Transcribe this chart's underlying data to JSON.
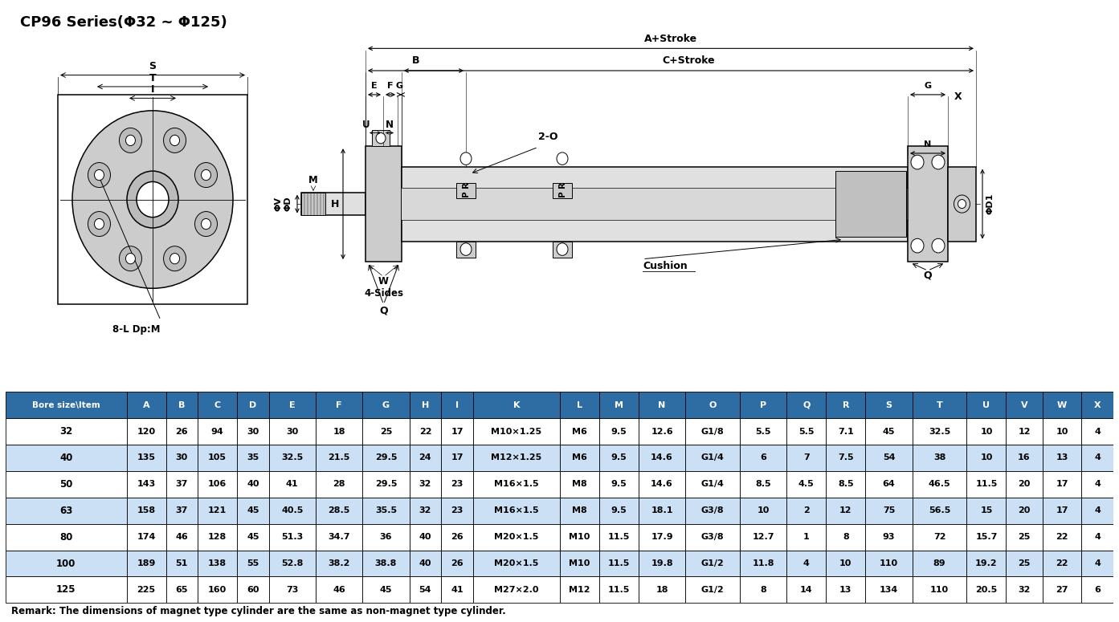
{
  "title": "CP96 Series(Φ32 ~ Φ125)",
  "remark": "Remark: The dimensions of magnet type cylinder are the same as non-magnet type cylinder.",
  "header": [
    "Bore size\\Item",
    "A",
    "B",
    "C",
    "D",
    "E",
    "F",
    "G",
    "H",
    "I",
    "K",
    "L",
    "M",
    "N",
    "O",
    "P",
    "Q",
    "R",
    "S",
    "T",
    "U",
    "V",
    "W",
    "X"
  ],
  "rows": [
    [
      "32",
      "120",
      "26",
      "94",
      "30",
      "30",
      "18",
      "25",
      "22",
      "17",
      "M10×1.25",
      "M6",
      "9.5",
      "12.6",
      "G1/8",
      "5.5",
      "5.5",
      "7.1",
      "45",
      "32.5",
      "10",
      "12",
      "10",
      "4"
    ],
    [
      "40",
      "135",
      "30",
      "105",
      "35",
      "32.5",
      "21.5",
      "29.5",
      "24",
      "17",
      "M12×1.25",
      "M6",
      "9.5",
      "14.6",
      "G1/4",
      "6",
      "7",
      "7.5",
      "54",
      "38",
      "10",
      "16",
      "13",
      "4"
    ],
    [
      "50",
      "143",
      "37",
      "106",
      "40",
      "41",
      "28",
      "29.5",
      "32",
      "23",
      "M16×1.5",
      "M8",
      "9.5",
      "14.6",
      "G1/4",
      "8.5",
      "4.5",
      "8.5",
      "64",
      "46.5",
      "11.5",
      "20",
      "17",
      "4"
    ],
    [
      "63",
      "158",
      "37",
      "121",
      "45",
      "40.5",
      "28.5",
      "35.5",
      "32",
      "23",
      "M16×1.5",
      "M8",
      "9.5",
      "18.1",
      "G3/8",
      "10",
      "2",
      "12",
      "75",
      "56.5",
      "15",
      "20",
      "17",
      "4"
    ],
    [
      "80",
      "174",
      "46",
      "128",
      "45",
      "51.3",
      "34.7",
      "36",
      "40",
      "26",
      "M20×1.5",
      "M10",
      "11.5",
      "17.9",
      "G3/8",
      "12.7",
      "1",
      "8",
      "93",
      "72",
      "15.7",
      "25",
      "22",
      "4"
    ],
    [
      "100",
      "189",
      "51",
      "138",
      "55",
      "52.8",
      "38.2",
      "38.8",
      "40",
      "26",
      "M20×1.5",
      "M10",
      "11.5",
      "19.8",
      "G1/2",
      "11.8",
      "4",
      "10",
      "110",
      "89",
      "19.2",
      "25",
      "22",
      "4"
    ],
    [
      "125",
      "225",
      "65",
      "160",
      "60",
      "73",
      "46",
      "45",
      "54",
      "41",
      "M27×2.0",
      "M12",
      "11.5",
      "18",
      "G1/2",
      "8",
      "14",
      "13",
      "134",
      "110",
      "20.5",
      "32",
      "27",
      "6"
    ]
  ],
  "header_bg": "#2e6da4",
  "header_fg": "#ffffff",
  "row_bg_even": "#ffffff",
  "row_bg_odd": "#cce0f5",
  "col_widths": [
    1.6,
    0.52,
    0.42,
    0.52,
    0.42,
    0.62,
    0.62,
    0.62,
    0.42,
    0.42,
    1.15,
    0.52,
    0.52,
    0.62,
    0.72,
    0.62,
    0.52,
    0.52,
    0.62,
    0.72,
    0.52,
    0.48,
    0.52,
    0.42
  ]
}
